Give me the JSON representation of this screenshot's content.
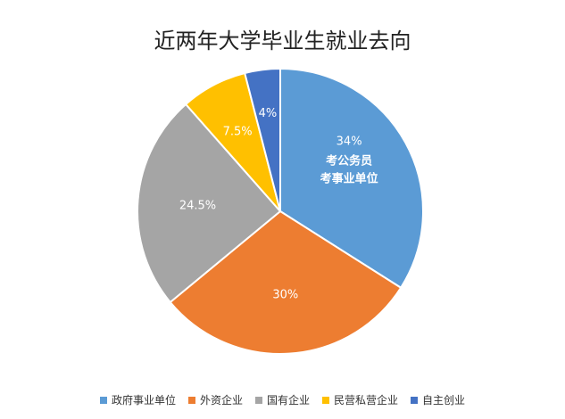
{
  "chart_data": {
    "type": "pie",
    "title": "近两年大学毕业生就业去向",
    "categories": [
      "政府事业单位",
      "外资企业",
      "国有企业",
      "民营私营企业",
      "自主创业"
    ],
    "values": [
      34,
      30,
      24.5,
      7.5,
      4
    ],
    "data_labels": [
      "34%",
      "30%",
      "24.5%",
      "7.5%",
      "4%"
    ],
    "colors": [
      "#5B9BD5",
      "#ED7D31",
      "#A5A5A5",
      "#FFC000",
      "#4472C4"
    ],
    "annotation": [
      "考公务员",
      "考事业单位"
    ],
    "legend_position": "bottom"
  }
}
